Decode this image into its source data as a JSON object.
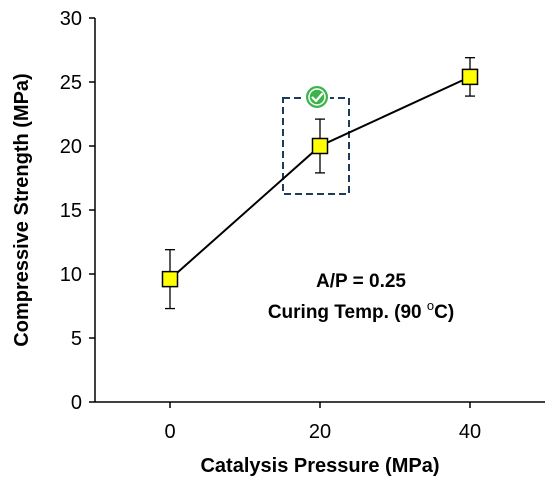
{
  "colors": {
    "marker_fill": "#ffff00",
    "marker_stroke": "#000000",
    "line": "#000000",
    "highlight_box": "#1f3b5c",
    "badge": "#3cb44b"
  },
  "annotation": {
    "line1": "A/P = 0.25",
    "line2_prefix": "Curing Temp. (90 ",
    "line2_sup": "o",
    "line2_suffix": "C)"
  },
  "highlight": {
    "category": 20,
    "badge_icon": "check-circle-icon"
  },
  "chart_data": {
    "type": "line",
    "title": "",
    "xlabel": "Catalysis Pressure (MPa)",
    "ylabel": "Compressive Strength (MPa)",
    "xlim": [
      -10,
      50
    ],
    "ylim": [
      0,
      30
    ],
    "xticks": [
      0,
      20,
      40
    ],
    "xtick_labels": [
      "0",
      "20",
      "40"
    ],
    "yticks": [
      0,
      5,
      10,
      15,
      20,
      25,
      30
    ],
    "ytick_labels": [
      "0",
      "5",
      "10",
      "15",
      "20",
      "25",
      "30"
    ],
    "grid": false,
    "legend": "none",
    "marker": "square",
    "series": [
      {
        "x": [
          0,
          20,
          40
        ],
        "y": [
          9.6,
          20.0,
          25.4
        ],
        "error": [
          2.3,
          2.1,
          1.5
        ]
      }
    ]
  }
}
